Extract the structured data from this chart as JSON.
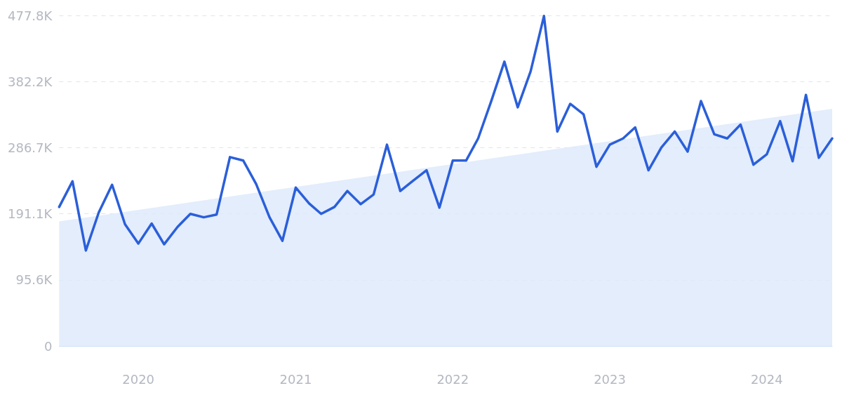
{
  "chart_data": {
    "type": "line",
    "xlim": [
      "2019-07",
      "2024-06"
    ],
    "xticks": [
      {
        "value": "2020-01",
        "label": "2020"
      },
      {
        "value": "2021-01",
        "label": "2021"
      },
      {
        "value": "2022-01",
        "label": "2022"
      },
      {
        "value": "2023-01",
        "label": "2023"
      },
      {
        "value": "2024-01",
        "label": "2024"
      }
    ],
    "ylim": [
      0,
      477.8
    ],
    "yticks": [
      {
        "value": 0,
        "label": "0"
      },
      {
        "value": 95.6,
        "label": "95.6K"
      },
      {
        "value": 191.1,
        "label": "191.1K"
      },
      {
        "value": 286.7,
        "label": "286.7K"
      },
      {
        "value": 382.2,
        "label": "382.2K"
      },
      {
        "value": 477.8,
        "label": "477.8K"
      }
    ],
    "grid": "y",
    "series": [
      {
        "type": "area",
        "color": "#dce9fb",
        "x": [
          "2019-07",
          "2024-06"
        ],
        "values": [
          180,
          343
        ]
      },
      {
        "color": "#2b5fd9",
        "x": [
          "2019-07",
          "2019-08",
          "2019-09",
          "2019-10",
          "2019-11",
          "2019-12",
          "2020-01",
          "2020-02",
          "2020-03",
          "2020-04",
          "2020-05",
          "2020-06",
          "2020-07",
          "2020-08",
          "2020-09",
          "2020-10",
          "2020-11",
          "2020-12",
          "2021-01",
          "2021-02",
          "2021-03",
          "2021-04",
          "2021-05",
          "2021-06",
          "2021-07",
          "2021-08",
          "2021-09",
          "2021-10",
          "2021-11",
          "2021-12",
          "2022-01",
          "2022-02",
          "2022-03",
          "2022-04",
          "2022-05",
          "2022-06",
          "2022-07",
          "2022-08",
          "2022-09",
          "2022-10",
          "2022-11",
          "2022-12",
          "2023-01",
          "2023-02",
          "2023-03",
          "2023-04",
          "2023-05",
          "2023-06",
          "2023-07",
          "2023-08",
          "2023-09",
          "2023-10",
          "2023-11",
          "2023-12",
          "2024-01",
          "2024-02",
          "2024-03",
          "2024-04",
          "2024-05",
          "2024-06"
        ],
        "values": [
          201,
          238,
          138,
          193,
          233,
          176,
          148,
          177,
          147,
          172,
          191,
          186,
          190,
          273,
          268,
          234,
          186,
          152,
          229,
          206,
          191,
          201,
          224,
          205,
          219,
          291,
          224,
          239,
          254,
          200,
          268,
          268,
          300,
          355,
          411,
          345,
          397,
          477,
          310,
          350,
          335,
          259,
          291,
          300,
          316,
          254,
          287,
          310,
          281,
          354,
          306,
          300,
          320,
          262,
          277,
          325,
          267,
          363,
          272,
          300
        ]
      }
    ]
  }
}
